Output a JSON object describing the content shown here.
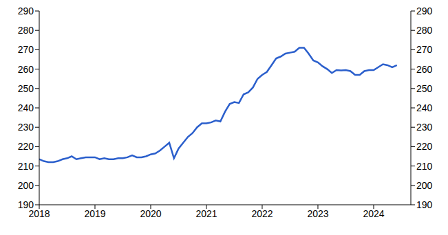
{
  "chart_data": {
    "type": "line",
    "x": [
      2018,
      2018.083,
      2018.167,
      2018.25,
      2018.333,
      2018.417,
      2018.5,
      2018.583,
      2018.667,
      2018.75,
      2018.833,
      2018.917,
      2019,
      2019.083,
      2019.167,
      2019.25,
      2019.333,
      2019.417,
      2019.5,
      2019.583,
      2019.667,
      2019.75,
      2019.833,
      2019.917,
      2020,
      2020.083,
      2020.167,
      2020.25,
      2020.333,
      2020.417,
      2020.5,
      2020.583,
      2020.667,
      2020.75,
      2020.833,
      2020.917,
      2021,
      2021.083,
      2021.167,
      2021.25,
      2021.333,
      2021.417,
      2021.5,
      2021.583,
      2021.667,
      2021.75,
      2021.833,
      2021.917,
      2022,
      2022.083,
      2022.167,
      2022.25,
      2022.333,
      2022.417,
      2022.5,
      2022.583,
      2022.667,
      2022.75,
      2022.833,
      2022.917,
      2023,
      2023.083,
      2023.167,
      2023.25,
      2023.333,
      2023.417,
      2023.5,
      2023.583,
      2023.667,
      2023.75,
      2023.833,
      2023.917,
      2024,
      2024.083,
      2024.167,
      2024.25,
      2024.333,
      2024.417
    ],
    "values": [
      213.5,
      212.5,
      212,
      212,
      212.5,
      213.5,
      214,
      215,
      213.5,
      214,
      214.5,
      214.5,
      214.5,
      213.5,
      214,
      213.5,
      213.5,
      214,
      214,
      214.5,
      215.5,
      214.5,
      214.5,
      215,
      216,
      216.5,
      218,
      220,
      222,
      214,
      219,
      222,
      225,
      227,
      230,
      232,
      232,
      232.5,
      233.5,
      233,
      238,
      242,
      243,
      242.5,
      247,
      248,
      250.5,
      255,
      257,
      258.5,
      262,
      265.5,
      266.5,
      268,
      268.5,
      269,
      271,
      271,
      268,
      264.5,
      263.5,
      261.5,
      260,
      258,
      259.5,
      259.3,
      259.5,
      259,
      257,
      257,
      259,
      259.5,
      259.5,
      261,
      262.5,
      262,
      261,
      262
    ],
    "color": "#2b5fcc",
    "xlim": [
      2018,
      2024.667
    ],
    "xticks": [
      2018,
      2019,
      2020,
      2021,
      2022,
      2023,
      2024
    ],
    "ylim": [
      190,
      290
    ],
    "yticks": [
      190,
      200,
      210,
      220,
      230,
      240,
      250,
      260,
      270,
      280,
      290
    ],
    "grid": false
  }
}
